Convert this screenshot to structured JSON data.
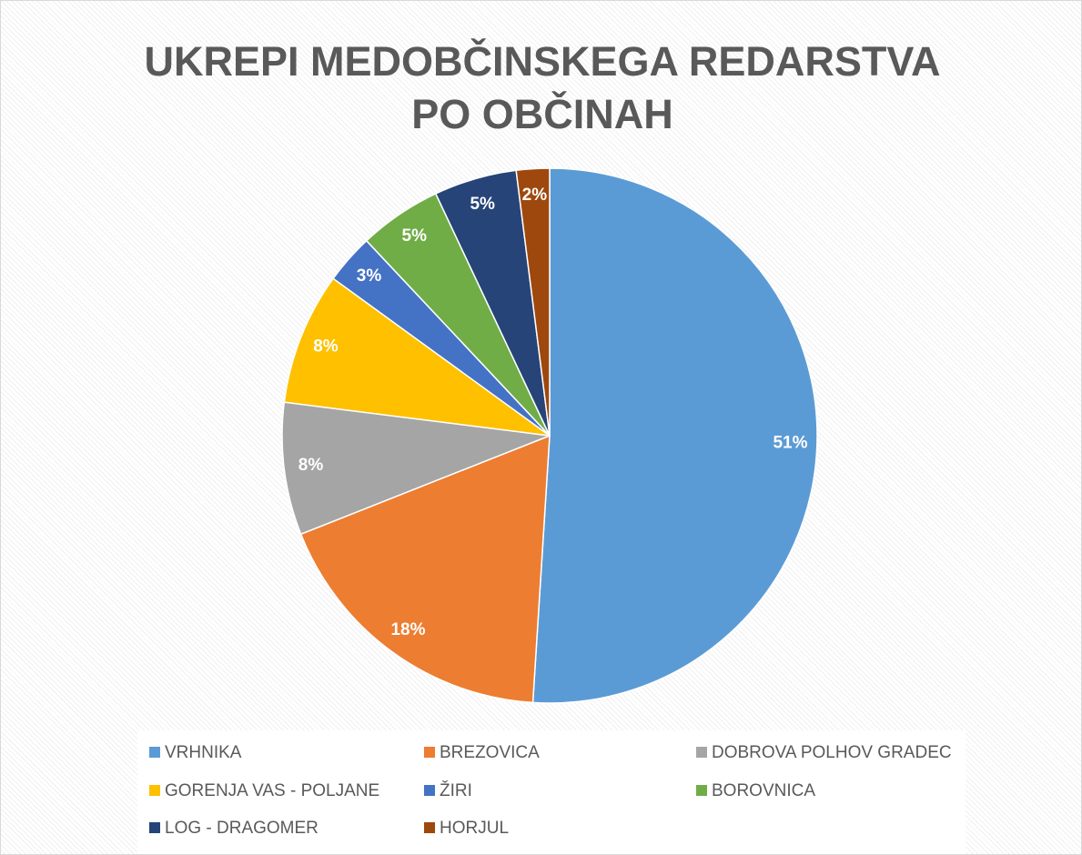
{
  "chart_data": {
    "type": "pie",
    "title": "UKREPI MEDOBČINSKEGA REDARSTVA PO OBČINAH",
    "categories": [
      "VRHNIKA",
      "BREZOVICA",
      "DOBROVA POLHOV GRADEC",
      "GORENJA VAS - POLJANE",
      "ŽIRI",
      "BOROVNICA",
      "LOG - DRAGOMER",
      "HORJUL"
    ],
    "values": [
      51,
      18,
      8,
      8,
      3,
      5,
      5,
      2
    ],
    "value_labels": [
      "51%",
      "18%",
      "8%",
      "8%",
      "3%",
      "5%",
      "5%",
      "2%"
    ],
    "colors": [
      "#5b9bd5",
      "#ed7d31",
      "#a5a5a5",
      "#ffc000",
      "#4472c4",
      "#70ad47",
      "#264478",
      "#9e480e"
    ],
    "legend": "bottom"
  }
}
